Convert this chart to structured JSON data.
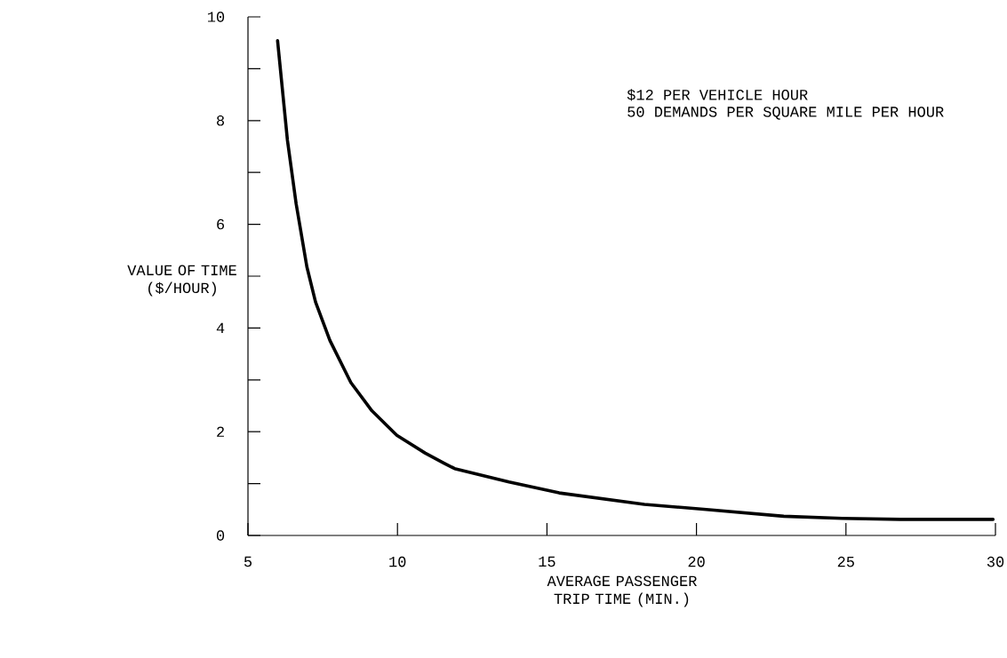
{
  "chart_data": {
    "type": "line",
    "xlabel": "AVERAGE PASSENGER TRIP TIME (MIN.)",
    "ylabel": "VALUE OF TIME ($/HOUR)",
    "annotations": [
      "$12 PER VEHICLE HOUR",
      "50 DEMANDS PER SQUARE MILE PER HOUR"
    ],
    "x": [
      5.99,
      6.32,
      6.61,
      6.97,
      7.26,
      7.74,
      8.44,
      9.15,
      9.98,
      10.92,
      11.57,
      11.91,
      13.73,
      15.41,
      18.26,
      20.33,
      22.92,
      24.87,
      26.81,
      29.92
    ],
    "series": [
      {
        "color": "#000000",
        "values": [
          9.54,
          7.62,
          6.4,
          5.18,
          4.5,
          3.76,
          2.95,
          2.4,
          1.93,
          1.59,
          1.39,
          1.29,
          1.03,
          0.82,
          0.6,
          0.5,
          0.37,
          0.33,
          0.31,
          0.31
        ]
      }
    ],
    "xlim": [
      5,
      30
    ],
    "ylim": [
      0,
      10
    ],
    "xticks": [
      5,
      10,
      15,
      20,
      25,
      30
    ],
    "yticks": [
      0,
      {
        "value": 1,
        "label": null
      },
      2,
      {
        "value": 3,
        "label": null
      },
      4,
      {
        "value": 5,
        "label": null
      },
      6,
      {
        "value": 7,
        "label": null
      },
      8,
      {
        "value": 9,
        "label": null
      },
      10
    ],
    "grid": false,
    "marker": "none",
    "line_style": "solid"
  }
}
